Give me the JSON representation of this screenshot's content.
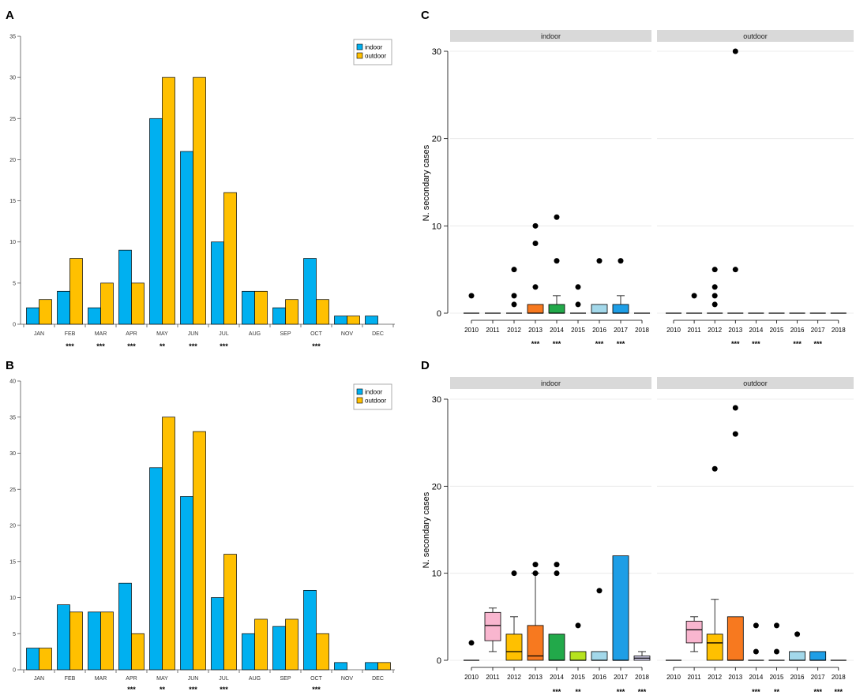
{
  "chart_data": [
    {
      "panel": "A",
      "type": "bar",
      "categories": [
        "JAN",
        "FEB",
        "MAR",
        "APR",
        "MAY",
        "JUN",
        "JUL",
        "AUG",
        "SEP",
        "OCT",
        "NOV",
        "DEC"
      ],
      "series": [
        {
          "name": "indoor",
          "color": "#00b0f0",
          "values": [
            2,
            4,
            2,
            9,
            25,
            21,
            10,
            4,
            2,
            8,
            1,
            1
          ]
        },
        {
          "name": "outdoor",
          "color": "#ffc000",
          "values": [
            3,
            8,
            5,
            5,
            30,
            30,
            16,
            4,
            3,
            3,
            1,
            0
          ]
        }
      ],
      "significance": [
        null,
        "***",
        "***",
        "***",
        "**",
        "***",
        "***",
        null,
        null,
        "***",
        null,
        null
      ],
      "ylim": [
        0,
        35
      ],
      "yticks": [
        0,
        5,
        10,
        15,
        20,
        25,
        30,
        35
      ],
      "legend_position": "top-right"
    },
    {
      "panel": "B",
      "type": "bar",
      "categories": [
        "JAN",
        "FEB",
        "MAR",
        "APR",
        "MAY",
        "JUN",
        "JUL",
        "AUG",
        "SEP",
        "OCT",
        "NOV",
        "DEC"
      ],
      "series": [
        {
          "name": "indoor",
          "color": "#00b0f0",
          "values": [
            3,
            9,
            8,
            12,
            28,
            24,
            10,
            5,
            6,
            11,
            1,
            1
          ]
        },
        {
          "name": "outdoor",
          "color": "#ffc000",
          "values": [
            3,
            8,
            8,
            5,
            35,
            33,
            16,
            7,
            7,
            5,
            0,
            1
          ]
        }
      ],
      "significance": [
        null,
        null,
        null,
        "***",
        "**",
        "***",
        "***",
        null,
        null,
        "***",
        null,
        null
      ],
      "ylim": [
        0,
        40
      ],
      "yticks": [
        0,
        5,
        10,
        15,
        20,
        25,
        30,
        35,
        40
      ],
      "legend_position": "top-right"
    },
    {
      "panel": "C",
      "type": "boxplot",
      "ylabel": "N. secondary cases",
      "ylim": [
        0,
        31
      ],
      "yticks": [
        0,
        10,
        20,
        30
      ],
      "facets": [
        {
          "label": "indoor",
          "groups": [
            {
              "year": "2010",
              "min": 0,
              "q1": 0,
              "median": 0,
              "q3": 0,
              "max": 0,
              "outliers": [
                2
              ],
              "color": null
            },
            {
              "year": "2011",
              "min": 0,
              "q1": 0,
              "median": 0,
              "q3": 0,
              "max": 0,
              "outliers": [],
              "color": null
            },
            {
              "year": "2012",
              "min": 0,
              "q1": 0,
              "median": 0,
              "q3": 0,
              "max": 0,
              "outliers": [
                1,
                2,
                5
              ],
              "color": null
            },
            {
              "year": "2013",
              "min": 0,
              "q1": 0,
              "median": 0,
              "q3": 1,
              "max": 1,
              "outliers": [
                3,
                8,
                10
              ],
              "color": "#f7791f"
            },
            {
              "year": "2014",
              "min": 0,
              "q1": 0,
              "median": 0,
              "q3": 1,
              "max": 2,
              "outliers": [
                6,
                11
              ],
              "color": "#22a94a"
            },
            {
              "year": "2015",
              "min": 0,
              "q1": 0,
              "median": 0,
              "q3": 0,
              "max": 0,
              "outliers": [
                1,
                3
              ],
              "color": null
            },
            {
              "year": "2016",
              "min": 0,
              "q1": 0,
              "median": 0,
              "q3": 1,
              "max": 1,
              "outliers": [
                6
              ],
              "color": "#a3d8ea"
            },
            {
              "year": "2017",
              "min": 0,
              "q1": 0,
              "median": 0,
              "q3": 1,
              "max": 2,
              "outliers": [
                6
              ],
              "color": "#1e9ee6"
            },
            {
              "year": "2018",
              "min": 0,
              "q1": 0,
              "median": 0,
              "q3": 0,
              "max": 0,
              "outliers": [],
              "color": null
            }
          ],
          "significance": [
            null,
            null,
            null,
            "***",
            "***",
            null,
            "***",
            "***",
            null
          ]
        },
        {
          "label": "outdoor",
          "groups": [
            {
              "year": "2010",
              "min": 0,
              "q1": 0,
              "median": 0,
              "q3": 0,
              "max": 0,
              "outliers": [],
              "color": null
            },
            {
              "year": "2011",
              "min": 0,
              "q1": 0,
              "median": 0,
              "q3": 0,
              "max": 0,
              "outliers": [
                2
              ],
              "color": null
            },
            {
              "year": "2012",
              "min": 0,
              "q1": 0,
              "median": 0,
              "q3": 0,
              "max": 0,
              "outliers": [
                1,
                2,
                3,
                5
              ],
              "color": null
            },
            {
              "year": "2013",
              "min": 0,
              "q1": 0,
              "median": 0,
              "q3": 0,
              "max": 0,
              "outliers": [
                5,
                30
              ],
              "color": null
            },
            {
              "year": "2014",
              "min": 0,
              "q1": 0,
              "median": 0,
              "q3": 0,
              "max": 0,
              "outliers": [],
              "color": null
            },
            {
              "year": "2015",
              "min": 0,
              "q1": 0,
              "median": 0,
              "q3": 0,
              "max": 0,
              "outliers": [],
              "color": null
            },
            {
              "year": "2016",
              "min": 0,
              "q1": 0,
              "median": 0,
              "q3": 0,
              "max": 0,
              "outliers": [],
              "color": null
            },
            {
              "year": "2017",
              "min": 0,
              "q1": 0,
              "median": 0,
              "q3": 0,
              "max": 0,
              "outliers": [],
              "color": null
            },
            {
              "year": "2018",
              "min": 0,
              "q1": 0,
              "median": 0,
              "q3": 0,
              "max": 0,
              "outliers": [],
              "color": null
            }
          ],
          "significance": [
            null,
            null,
            null,
            "***",
            "***",
            null,
            "***",
            "***",
            null
          ]
        }
      ]
    },
    {
      "panel": "D",
      "type": "boxplot",
      "ylabel": "N. secondary cases",
      "ylim": [
        0,
        31
      ],
      "yticks": [
        0,
        10,
        20,
        30
      ],
      "facets": [
        {
          "label": "indoor",
          "groups": [
            {
              "year": "2010",
              "min": 0,
              "q1": 0,
              "median": 0,
              "q3": 0,
              "max": 0,
              "outliers": [
                2
              ],
              "color": null
            },
            {
              "year": "2011",
              "min": 1,
              "q1": 2.25,
              "median": 4,
              "q3": 5.5,
              "max": 6,
              "outliers": [],
              "color": "#f9b6cf"
            },
            {
              "year": "2012",
              "min": 0,
              "q1": 0,
              "median": 1,
              "q3": 3,
              "max": 5,
              "outliers": [
                10
              ],
              "color": "#ffc000"
            },
            {
              "year": "2013",
              "min": 0,
              "q1": 0,
              "median": 0.5,
              "q3": 4,
              "max": 10,
              "outliers": [
                10,
                11
              ],
              "color": "#f7791f"
            },
            {
              "year": "2014",
              "min": 0,
              "q1": 0,
              "median": 0,
              "q3": 3,
              "max": 3,
              "outliers": [
                10,
                11
              ],
              "color": "#22a94a"
            },
            {
              "year": "2015",
              "min": 0,
              "q1": 0,
              "median": 0,
              "q3": 1,
              "max": 1,
              "outliers": [
                4
              ],
              "color": "#b6e31e"
            },
            {
              "year": "2016",
              "min": 0,
              "q1": 0,
              "median": 0,
              "q3": 1,
              "max": 1,
              "outliers": [
                8
              ],
              "color": "#a3d8ea"
            },
            {
              "year": "2017",
              "min": 0,
              "q1": 0,
              "median": 0,
              "q3": 12,
              "max": 12,
              "outliers": [],
              "color": "#1e9ee6"
            },
            {
              "year": "2018",
              "min": 0,
              "q1": 0,
              "median": 0.25,
              "q3": 0.5,
              "max": 1,
              "outliers": [],
              "color": "#d8d3f0"
            }
          ],
          "significance": [
            null,
            null,
            null,
            null,
            "***",
            "**",
            null,
            "***",
            "***"
          ]
        },
        {
          "label": "outdoor",
          "groups": [
            {
              "year": "2010",
              "min": 0,
              "q1": 0,
              "median": 0,
              "q3": 0,
              "max": 0,
              "outliers": [],
              "color": null
            },
            {
              "year": "2011",
              "min": 1,
              "q1": 2,
              "median": 3.5,
              "q3": 4.5,
              "max": 5,
              "outliers": [],
              "color": "#f9b6cf"
            },
            {
              "year": "2012",
              "min": 0,
              "q1": 0,
              "median": 2,
              "q3": 3,
              "max": 7,
              "outliers": [
                22
              ],
              "color": "#ffc000"
            },
            {
              "year": "2013",
              "min": 0,
              "q1": 0,
              "median": 0,
              "q3": 5,
              "max": 5,
              "outliers": [
                26,
                29
              ],
              "color": "#f7791f"
            },
            {
              "year": "2014",
              "min": 0,
              "q1": 0,
              "median": 0,
              "q3": 0,
              "max": 0,
              "outliers": [
                1,
                4
              ],
              "color": null
            },
            {
              "year": "2015",
              "min": 0,
              "q1": 0,
              "median": 0,
              "q3": 0,
              "max": 0,
              "outliers": [
                1,
                4
              ],
              "color": null
            },
            {
              "year": "2016",
              "min": 0,
              "q1": 0,
              "median": 0,
              "q3": 1,
              "max": 1,
              "outliers": [
                3
              ],
              "color": "#a3d8ea"
            },
            {
              "year": "2017",
              "min": 0,
              "q1": 0,
              "median": 0,
              "q3": 1,
              "max": 1,
              "outliers": [],
              "color": "#1e9ee6"
            },
            {
              "year": "2018",
              "min": 0,
              "q1": 0,
              "median": 0,
              "q3": 0,
              "max": 0,
              "outliers": [],
              "color": null
            }
          ],
          "significance": [
            null,
            null,
            null,
            null,
            "***",
            "**",
            null,
            "***",
            "***"
          ]
        }
      ]
    }
  ]
}
